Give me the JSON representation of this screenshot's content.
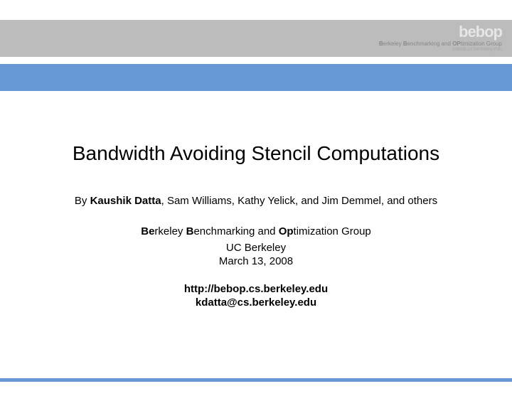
{
  "header": {
    "logo_text": "bebop",
    "logo_subtitle_prefix_b1": "B",
    "logo_subtitle_mid1": "erkeley ",
    "logo_subtitle_prefix_b2": "B",
    "logo_subtitle_mid2": "enchmarking and ",
    "logo_subtitle_prefix_o": "OP",
    "logo_subtitle_end": "timization Group",
    "logo_url": "bebop.cs.berkeley.edu"
  },
  "slide": {
    "title": "Bandwidth Avoiding Stencil Computations",
    "by_prefix": "By ",
    "main_author": "Kaushik Datta",
    "coauthors": ", Sam Williams, Kathy Yelick, and Jim Demmel, and others",
    "group_b1": "Be",
    "group_r1": "rkeley ",
    "group_b2": "B",
    "group_r2": "enchmarking and ",
    "group_b3": "Op",
    "group_r3": "timization Group",
    "institution": "UC Berkeley",
    "date": "March 13, 2008",
    "url": "http://bebop.cs.berkeley.edu",
    "email": "kdatta@cs.berkeley.edu"
  },
  "colors": {
    "grey_bar": "#bcbcbc",
    "blue_bar": "#6699d6",
    "background": "#ffffff"
  }
}
